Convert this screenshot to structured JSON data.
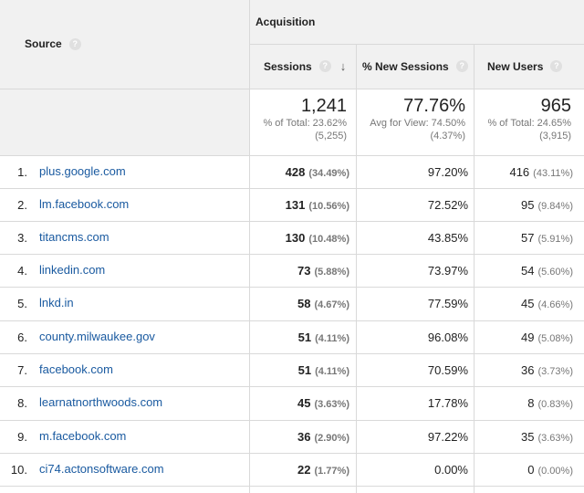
{
  "header": {
    "source_label": "Source",
    "acquisition_label": "Acquisition",
    "columns": {
      "sessions": "Sessions",
      "new_sessions": "% New Sessions",
      "new_users": "New Users"
    },
    "help_glyph": "?",
    "sort_glyph": "↓"
  },
  "totals": {
    "sessions": {
      "value": "1,241",
      "line1": "% of Total: 23.62%",
      "line2": "(5,255)"
    },
    "new_sessions": {
      "value": "77.76%",
      "line1": "Avg for View: 74.50%",
      "line2": "(4.37%)"
    },
    "new_users": {
      "value": "965",
      "line1": "% of Total: 24.65%",
      "line2": "(3,915)"
    }
  },
  "rows": [
    {
      "index": "1.",
      "source": "plus.google.com",
      "sessions": "428",
      "sessions_pct": "(34.49%)",
      "new_sessions": "97.20%",
      "new_users": "416",
      "new_users_pct": "(43.11%)"
    },
    {
      "index": "2.",
      "source": "lm.facebook.com",
      "sessions": "131",
      "sessions_pct": "(10.56%)",
      "new_sessions": "72.52%",
      "new_users": "95",
      "new_users_pct": "(9.84%)"
    },
    {
      "index": "3.",
      "source": "titancms.com",
      "sessions": "130",
      "sessions_pct": "(10.48%)",
      "new_sessions": "43.85%",
      "new_users": "57",
      "new_users_pct": "(5.91%)"
    },
    {
      "index": "4.",
      "source": "linkedin.com",
      "sessions": "73",
      "sessions_pct": "(5.88%)",
      "new_sessions": "73.97%",
      "new_users": "54",
      "new_users_pct": "(5.60%)"
    },
    {
      "index": "5.",
      "source": "lnkd.in",
      "sessions": "58",
      "sessions_pct": "(4.67%)",
      "new_sessions": "77.59%",
      "new_users": "45",
      "new_users_pct": "(4.66%)"
    },
    {
      "index": "6.",
      "source": "county.milwaukee.gov",
      "sessions": "51",
      "sessions_pct": "(4.11%)",
      "new_sessions": "96.08%",
      "new_users": "49",
      "new_users_pct": "(5.08%)"
    },
    {
      "index": "7.",
      "source": "facebook.com",
      "sessions": "51",
      "sessions_pct": "(4.11%)",
      "new_sessions": "70.59%",
      "new_users": "36",
      "new_users_pct": "(3.73%)"
    },
    {
      "index": "8.",
      "source": "learnatnorthwoods.com",
      "sessions": "45",
      "sessions_pct": "(3.63%)",
      "new_sessions": "17.78%",
      "new_users": "8",
      "new_users_pct": "(0.83%)"
    },
    {
      "index": "9.",
      "source": "m.facebook.com",
      "sessions": "36",
      "sessions_pct": "(2.90%)",
      "new_sessions": "97.22%",
      "new_users": "35",
      "new_users_pct": "(3.63%)"
    },
    {
      "index": "10.",
      "source": "ci74.actonsoftware.com",
      "sessions": "22",
      "sessions_pct": "(1.77%)",
      "new_sessions": "0.00%",
      "new_users": "0",
      "new_users_pct": "(0.00%)"
    }
  ],
  "colors": {
    "link": "#1a5aa0",
    "header_bg": "#f1f1f1",
    "border": "#d9d9d9",
    "muted_text": "#777777"
  }
}
